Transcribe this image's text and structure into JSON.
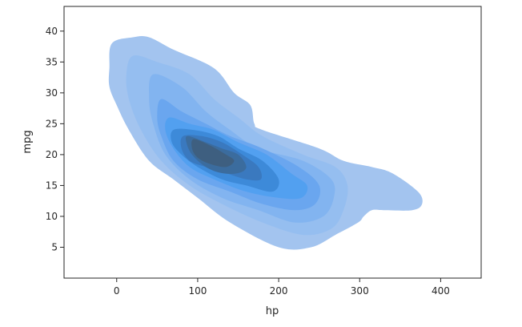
{
  "chart_data": {
    "type": "kde-contour",
    "xlabel": "hp",
    "ylabel": "mpg",
    "xlim": [
      -65,
      450
    ],
    "ylim": [
      0,
      44
    ],
    "xticks": [
      0,
      100,
      200,
      300,
      400
    ],
    "yticks": [
      5,
      10,
      15,
      20,
      25,
      30,
      35,
      40
    ],
    "grid": false,
    "legend": "none",
    "levels": [
      {
        "level": 1,
        "color": "#a3c4ef",
        "points": [
          [
            -9,
            34
          ],
          [
            -6,
            38
          ],
          [
            20,
            39
          ],
          [
            40,
            39
          ],
          [
            70,
            37
          ],
          [
            120,
            34
          ],
          [
            145,
            30
          ],
          [
            165,
            28
          ],
          [
            170,
            25
          ],
          [
            180,
            24
          ],
          [
            250,
            21
          ],
          [
            280,
            19
          ],
          [
            315,
            18
          ],
          [
            340,
            17
          ],
          [
            372,
            14
          ],
          [
            377,
            12
          ],
          [
            365,
            11
          ],
          [
            330,
            11
          ],
          [
            315,
            11
          ],
          [
            305,
            10
          ],
          [
            298,
            9
          ],
          [
            270,
            7
          ],
          [
            240,
            5
          ],
          [
            200,
            5
          ],
          [
            140,
            9
          ],
          [
            100,
            13
          ],
          [
            70,
            16
          ],
          [
            40,
            19
          ],
          [
            15,
            24
          ],
          [
            0,
            28
          ],
          [
            -9,
            31
          ]
        ]
      },
      {
        "level": 2,
        "color": "#95bef0",
        "points": [
          [
            20,
            36
          ],
          [
            50,
            35
          ],
          [
            90,
            33
          ],
          [
            120,
            29
          ],
          [
            150,
            26
          ],
          [
            180,
            23
          ],
          [
            230,
            20
          ],
          [
            270,
            18
          ],
          [
            285,
            15
          ],
          [
            280,
            11
          ],
          [
            265,
            8
          ],
          [
            230,
            7
          ],
          [
            180,
            9
          ],
          [
            130,
            12
          ],
          [
            90,
            15
          ],
          [
            55,
            19
          ],
          [
            30,
            24
          ],
          [
            15,
            29
          ],
          [
            12,
            33
          ]
        ]
      },
      {
        "level": 3,
        "color": "#82b4f0",
        "points": [
          [
            45,
            33
          ],
          [
            80,
            31
          ],
          [
            110,
            27
          ],
          [
            140,
            24
          ],
          [
            175,
            21
          ],
          [
            230,
            19
          ],
          [
            265,
            16
          ],
          [
            268,
            13
          ],
          [
            255,
            10
          ],
          [
            220,
            9
          ],
          [
            175,
            11
          ],
          [
            130,
            13
          ],
          [
            90,
            16
          ],
          [
            60,
            20
          ],
          [
            45,
            25
          ],
          [
            40,
            29
          ]
        ]
      },
      {
        "level": 4,
        "color": "#6aa6ef",
        "points": [
          [
            55,
            29
          ],
          [
            80,
            27
          ],
          [
            110,
            25
          ],
          [
            140,
            23
          ],
          [
            180,
            21
          ],
          [
            225,
            18
          ],
          [
            250,
            15
          ],
          [
            245,
            12
          ],
          [
            220,
            11
          ],
          [
            180,
            12
          ],
          [
            140,
            14
          ],
          [
            100,
            16
          ],
          [
            70,
            19
          ],
          [
            55,
            23
          ],
          [
            50,
            26
          ]
        ]
      },
      {
        "level": 5,
        "color": "#52a0f0",
        "points": [
          [
            65,
            26
          ],
          [
            90,
            25
          ],
          [
            120,
            24
          ],
          [
            150,
            22
          ],
          [
            185,
            20
          ],
          [
            215,
            17
          ],
          [
            235,
            15
          ],
          [
            228,
            13
          ],
          [
            200,
            13
          ],
          [
            160,
            14
          ],
          [
            120,
            16
          ],
          [
            90,
            18
          ],
          [
            70,
            21
          ],
          [
            60,
            24
          ]
        ]
      },
      {
        "level": 6,
        "color": "#3d8ad9",
        "points": [
          [
            70,
            24
          ],
          [
            95,
            24
          ],
          [
            125,
            23
          ],
          [
            150,
            21
          ],
          [
            180,
            19
          ],
          [
            200,
            16
          ],
          [
            192,
            14
          ],
          [
            160,
            15
          ],
          [
            130,
            16
          ],
          [
            100,
            18
          ],
          [
            80,
            20
          ],
          [
            68,
            22
          ]
        ]
      },
      {
        "level": 7,
        "color": "#3a79bf",
        "points": [
          [
            82,
            23
          ],
          [
            105,
            23
          ],
          [
            130,
            22
          ],
          [
            155,
            20
          ],
          [
            175,
            18
          ],
          [
            178,
            16
          ],
          [
            160,
            16
          ],
          [
            135,
            17
          ],
          [
            110,
            18
          ],
          [
            90,
            19
          ],
          [
            80,
            21
          ]
        ]
      },
      {
        "level": 8,
        "color": "#3b6c9e",
        "points": [
          [
            88,
            23
          ],
          [
            110,
            22
          ],
          [
            130,
            21
          ],
          [
            150,
            20
          ],
          [
            160,
            18
          ],
          [
            150,
            17
          ],
          [
            130,
            17
          ],
          [
            110,
            18
          ],
          [
            93,
            20
          ],
          [
            86,
            22
          ]
        ]
      },
      {
        "level": 9,
        "color": "#3e5f80",
        "points": [
          [
            95,
            22.5
          ],
          [
            115,
            21.5
          ],
          [
            135,
            20
          ],
          [
            145,
            19
          ],
          [
            135,
            18
          ],
          [
            115,
            18.5
          ],
          [
            100,
            19.5
          ],
          [
            93,
            21
          ]
        ]
      }
    ]
  }
}
